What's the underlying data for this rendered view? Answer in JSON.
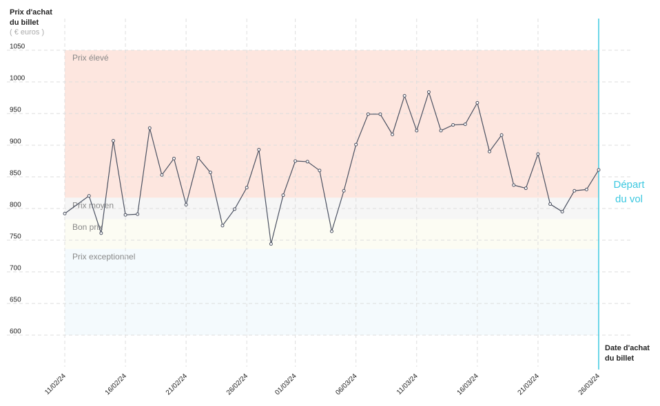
{
  "chart_data": {
    "type": "line",
    "y_title": [
      "Prix d'achat",
      "du billet"
    ],
    "y_unit": "( € euros )",
    "x_title": [
      "Date d'achat",
      "du billet"
    ],
    "x": [
      "11/02/24",
      "13/02/24",
      "14/02/24",
      "15/02/24",
      "16/02/24",
      "17/02/24",
      "18/02/24",
      "19/02/24",
      "20/02/24",
      "21/02/24",
      "22/02/24",
      "23/02/24",
      "24/02/24",
      "25/02/24",
      "26/02/24",
      "27/02/24",
      "28/02/24",
      "29/02/24",
      "01/03/24",
      "02/03/24",
      "03/03/24",
      "04/03/24",
      "05/03/24",
      "06/03/24",
      "07/03/24",
      "08/03/24",
      "09/03/24",
      "10/03/24",
      "11/03/24",
      "12/03/24",
      "13/03/24",
      "14/03/24",
      "15/03/24",
      "16/03/24",
      "17/03/24",
      "18/03/24",
      "19/03/24",
      "20/03/24",
      "21/03/24",
      "22/03/24",
      "23/03/24",
      "24/03/24",
      "25/03/24",
      "26/03/24"
    ],
    "series": [
      {
        "color": "#4a5060",
        "values": [
          792,
          820,
          761,
          907,
          790,
          791,
          927,
          853,
          879,
          806,
          880,
          857,
          773,
          799,
          833,
          893,
          744,
          821,
          875,
          874,
          860,
          764,
          828,
          901,
          949,
          949,
          917,
          978,
          923,
          984,
          923,
          932,
          933,
          967,
          890,
          916,
          837,
          832,
          886,
          807,
          795,
          828,
          830,
          861
        ]
      }
    ],
    "xticks": [
      "11/02/24",
      "16/02/24",
      "21/02/24",
      "26/02/24",
      "01/03/24",
      "06/03/24",
      "11/03/24",
      "16/03/24",
      "21/03/24",
      "26/03/24"
    ],
    "ylim": [
      550,
      1100
    ],
    "yticks": [
      600,
      650,
      700,
      750,
      800,
      850,
      900,
      950,
      1000,
      1050
    ],
    "grid": true,
    "bands": [
      {
        "label": "Prix élevé",
        "from": 817,
        "to": 1050,
        "color": "#fde6df"
      },
      {
        "label": "Prix moyen",
        "from": 783,
        "to": 817,
        "color": "#f6f6f6"
      },
      {
        "label": "Bon prix",
        "from": 736,
        "to": 783,
        "color": "#fcfcf3"
      },
      {
        "label": "Prix exceptionnel",
        "from": 600,
        "to": 736,
        "color": "#f4fafd"
      }
    ],
    "departure": {
      "date": "26/03/24",
      "label": [
        "Départ",
        "du vol"
      ],
      "color": "#3cc8e0"
    }
  }
}
